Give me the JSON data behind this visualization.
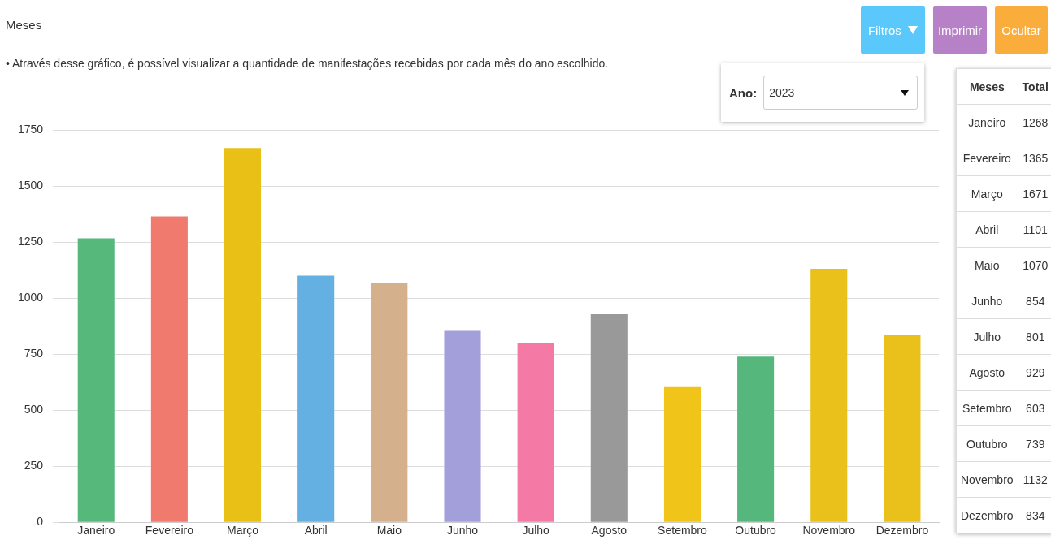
{
  "chart_data": [
    {
      "type": "bar",
      "title": "Meses",
      "subtitle": "• Através desse gráfico, é possível visualizar a quantidade de manifestações recebidas por cada mês do ano escolhido.",
      "categories": [
        "Janeiro",
        "Fevereiro",
        "Março",
        "Abril",
        "Maio",
        "Junho",
        "Julho",
        "Agosto",
        "Setembro",
        "Outubro",
        "Novembro",
        "Dezembro"
      ],
      "values": [
        1268,
        1365,
        1671,
        1101,
        1070,
        854,
        801,
        929,
        603,
        739,
        1132,
        834
      ],
      "colors": [
        "#57b87b",
        "#ef7a6d",
        "#e9c116",
        "#64b0e2",
        "#d4b08c",
        "#a29fdb",
        "#f47aa5",
        "#999999",
        "#f0c419",
        "#55b77c",
        "#e9c11a",
        "#e9c11a"
      ],
      "ylim": [
        0,
        1750
      ],
      "yticks": [
        0,
        250,
        500,
        750,
        1000,
        1250,
        1500,
        1750
      ],
      "grid": "y",
      "annotations": [
        "Filtros",
        "Imprimir",
        "Ocultar",
        "Ano:",
        "2023"
      ]
    },
    {
      "type": "other",
      "annotations": [
        "Meses",
        "Total",
        "Janeiro",
        "1268",
        "Fevereiro",
        "1365",
        "Março",
        "1671",
        "Abril",
        "1101",
        "Maio",
        "1070",
        "Junho",
        "854",
        "Julho",
        "801",
        "Agosto",
        "929",
        "Setembro",
        "603",
        "Outubro",
        "739",
        "Novembro",
        "1132",
        "Dezembro",
        "834"
      ]
    }
  ]
}
